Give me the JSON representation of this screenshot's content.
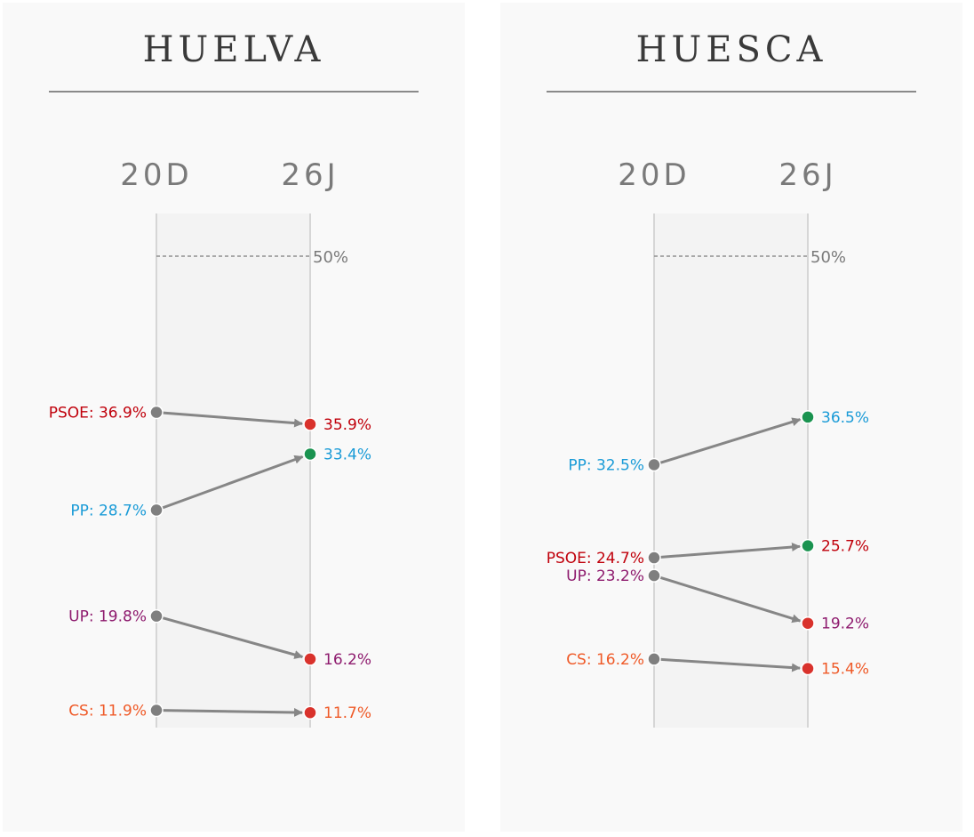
{
  "chart_data": [
    {
      "type": "line",
      "title": "HUELVA",
      "x": [
        "20D",
        "26J"
      ],
      "reference_line": {
        "value": 50,
        "label": "50%"
      },
      "ylim": [
        0,
        60
      ],
      "series": [
        {
          "name": "PSOE",
          "values": [
            36.9,
            35.9
          ],
          "start_label": "PSOE: 36.9%",
          "end_label": "35.9%",
          "color": "#c0000b",
          "end_dot": "#d9322c"
        },
        {
          "name": "PP",
          "values": [
            28.7,
            33.4
          ],
          "start_label": "PP: 28.7%",
          "end_label": "33.4%",
          "color": "#1a9bd7",
          "end_dot": "#1a9350"
        },
        {
          "name": "UP",
          "values": [
            19.8,
            16.2
          ],
          "start_label": "UP: 19.8%",
          "end_label": "16.2%",
          "color": "#8e1b6e",
          "end_dot": "#d9322c"
        },
        {
          "name": "CS",
          "values": [
            11.9,
            11.7
          ],
          "start_label": "CS: 11.9%",
          "end_label": "11.7%",
          "color": "#ef5a28",
          "end_dot": "#d9322c"
        }
      ]
    },
    {
      "type": "line",
      "title": "HUESCA",
      "x": [
        "20D",
        "26J"
      ],
      "reference_line": {
        "value": 50,
        "label": "50%"
      },
      "ylim": [
        0,
        60
      ],
      "series": [
        {
          "name": "PP",
          "values": [
            32.5,
            36.5
          ],
          "start_label": "PP: 32.5%",
          "end_label": "36.5%",
          "color": "#1a9bd7",
          "end_dot": "#1a9350"
        },
        {
          "name": "PSOE",
          "values": [
            24.7,
            25.7
          ],
          "start_label": "PSOE: 24.7%",
          "end_label": "25.7%",
          "color": "#c0000b",
          "end_dot": "#1a9350"
        },
        {
          "name": "UP",
          "values": [
            23.2,
            19.2
          ],
          "start_label": "UP: 23.2%",
          "end_label": "19.2%",
          "color": "#8e1b6e",
          "end_dot": "#d9322c"
        },
        {
          "name": "CS",
          "values": [
            16.2,
            15.4
          ],
          "start_label": "CS: 16.2%",
          "end_label": "15.4%",
          "color": "#ef5a28",
          "end_dot": "#d9322c"
        }
      ]
    }
  ],
  "colors": {
    "start_dot": "#7f7f7f",
    "arrow": "#868686",
    "axis": "#d6d6d6",
    "band": "#f3f3f3"
  }
}
